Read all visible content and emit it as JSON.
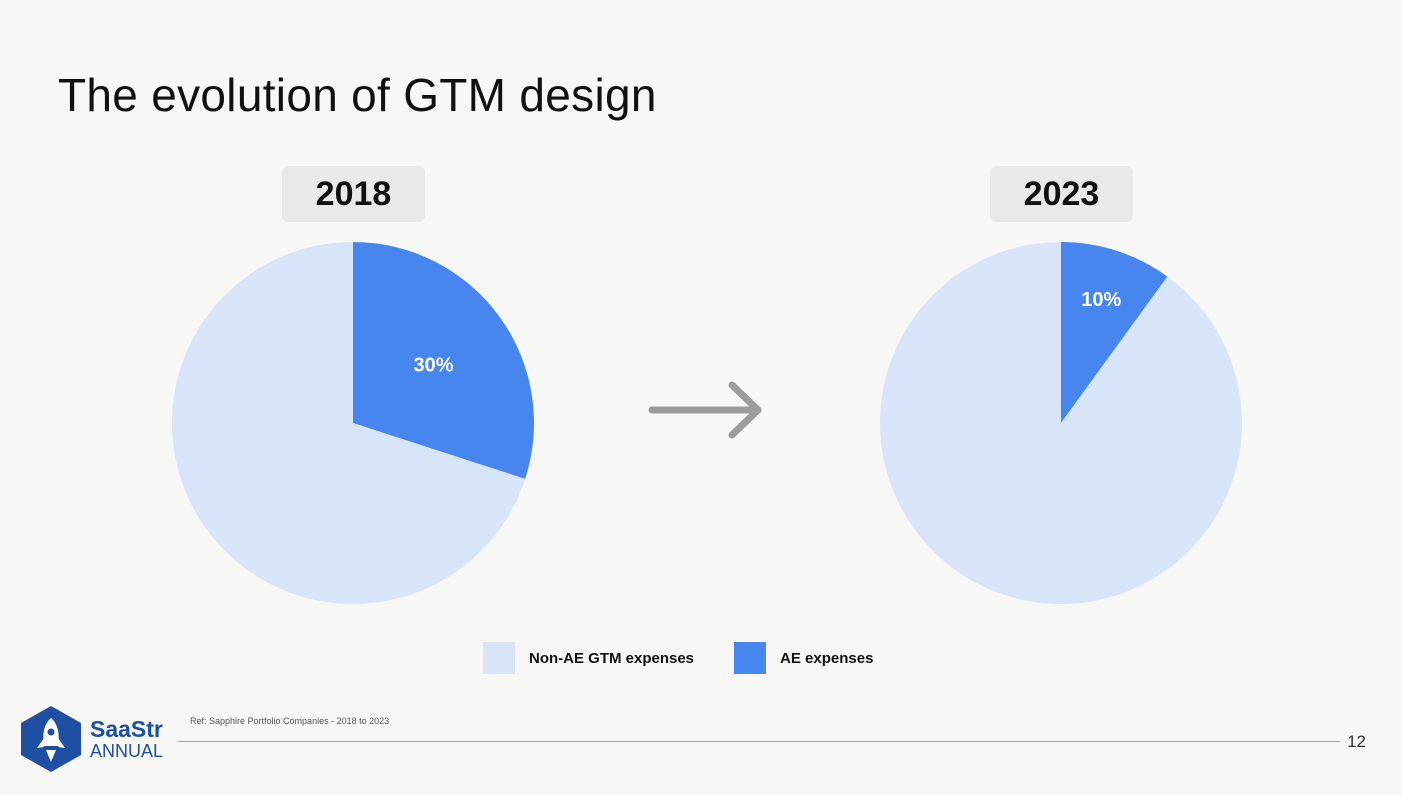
{
  "slide": {
    "title": "The evolution of GTM design",
    "reference": "Ref: Sapphire Portfolio Companies - 2018 to 2023",
    "page_number": "12"
  },
  "logo": {
    "name": "SaaStr",
    "subtitle": "ANNUAL"
  },
  "colors": {
    "non_ae": "#d8e4f8",
    "ae": "#4785ef",
    "arrow": "#9c9c9c",
    "logo_blue": "#1e4fa3"
  },
  "legend": [
    {
      "label": "Non-AE GTM expenses",
      "color": "#d8e4f8"
    },
    {
      "label": "AE expenses",
      "color": "#4785ef"
    }
  ],
  "chart_data": [
    {
      "type": "pie",
      "title": "2018",
      "categories": [
        "Non-AE GTM expenses",
        "AE expenses"
      ],
      "values": [
        70,
        30
      ],
      "labels": [
        "",
        "30%"
      ]
    },
    {
      "type": "pie",
      "title": "2023",
      "categories": [
        "Non-AE GTM expenses",
        "AE expenses"
      ],
      "values": [
        90,
        10
      ],
      "labels": [
        "",
        "10%"
      ]
    }
  ]
}
